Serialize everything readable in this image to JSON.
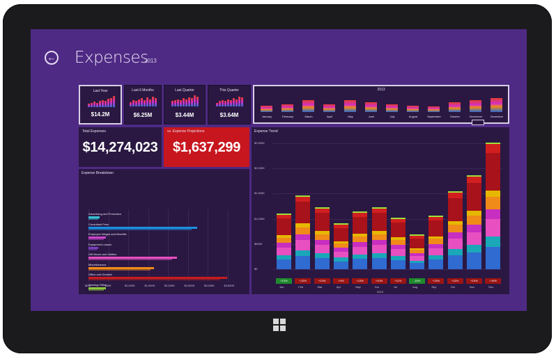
{
  "header": {
    "title": "Expenses",
    "year": "2013"
  },
  "kpis": [
    {
      "title": "Last Year",
      "value": "$14.2M",
      "selected": true,
      "spark": [
        4,
        5,
        6,
        5,
        7,
        8,
        7,
        9,
        10,
        12
      ]
    },
    {
      "title": "Last 6 Months",
      "value": "$6.25M",
      "selected": false,
      "spark": [
        5,
        7,
        6,
        8,
        9,
        7,
        10,
        8,
        11,
        9
      ]
    },
    {
      "title": "Last Quarter",
      "value": "$3.44M",
      "selected": false,
      "spark": [
        6,
        7,
        8,
        7,
        9,
        8,
        10,
        9,
        12,
        11
      ]
    },
    {
      "title": "This Quarter",
      "value": "$3.64M",
      "selected": false,
      "spark": [
        4,
        6,
        7,
        6,
        8,
        7,
        9,
        8,
        11,
        10
      ]
    }
  ],
  "months_panel": {
    "title": "2013",
    "months": [
      "January",
      "February",
      "March",
      "April",
      "May",
      "June",
      "July",
      "August",
      "September",
      "October",
      "November",
      "December"
    ],
    "levels": [
      0.3,
      0.38,
      0.55,
      0.35,
      0.55,
      0.48,
      0.38,
      0.3,
      0.25,
      0.45,
      0.58,
      0.65
    ]
  },
  "total": {
    "label": "Total Expenses",
    "value": "$14,274,023"
  },
  "projection": {
    "label": "vs. Expense Projections",
    "value": "$1,637,299"
  },
  "breakdown": {
    "title": "Expense Breakdown",
    "rows": [
      {
        "label": "Advertising and Promotion",
        "color": "#36c3d6",
        "value": 0.06
      },
      {
        "label": "Consultant Fees",
        "color": "#1c8fe0",
        "value": 0.74
      },
      {
        "label": "Employee Wages and Benefits",
        "color": "#cc44cc",
        "value": 0.1
      },
      {
        "label": "Equipment Leases",
        "color": "#7a3fc0",
        "value": 0.05
      },
      {
        "label": "Gift Boxes and Utilities",
        "color": "#e84fc0",
        "value": 0.6
      },
      {
        "label": "Miscellaneous",
        "color": "#f08a18",
        "value": 0.44
      },
      {
        "label": "Office and General",
        "color": "#c81c1c",
        "value": 0.95
      },
      {
        "label": "Training Office",
        "color": "#8ec83c",
        "value": 0.1
      }
    ],
    "axis": [
      "$0M",
      "$50K",
      "$1,000K",
      "$1,500K",
      "$2,000K",
      "$2,500K",
      "$3,000K",
      "$3,500K"
    ]
  },
  "trend": {
    "title": "Expense Trend",
    "yticks": [
      "$0",
      "$500K",
      "$1,000K",
      "$1,500K",
      "$2,000K",
      "$2,500K"
    ],
    "year": "2013",
    "months": [
      "Jan",
      "Feb",
      "Mar",
      "Apr",
      "May",
      "Jun",
      "Jul",
      "Aug",
      "Sep",
      "Oct",
      "Nov",
      "Dec"
    ],
    "totals": [
      1080,
      1440,
      1200,
      880,
      1120,
      1200,
      1000,
      660,
      1040,
      1520,
      1840,
      2480
    ],
    "chips": [
      "+13%",
      "+12%",
      "+13%",
      "+4%",
      "+13%",
      "+10%",
      "+11%",
      "-16%",
      "+13%",
      "+11%",
      "+15%",
      "+19%"
    ],
    "chip_colors": [
      "#1e8a2c",
      "#9b1414",
      "#9b1414",
      "#9b1414",
      "#9b1414",
      "#9b1414",
      "#9b1414",
      "#1e8a2c",
      "#9b1414",
      "#9b1414",
      "#9b1414",
      "#9b1414"
    ]
  },
  "colors": {
    "accent": "#4e2a84",
    "tile": "#2a1842",
    "alert": "#c8161e"
  }
}
